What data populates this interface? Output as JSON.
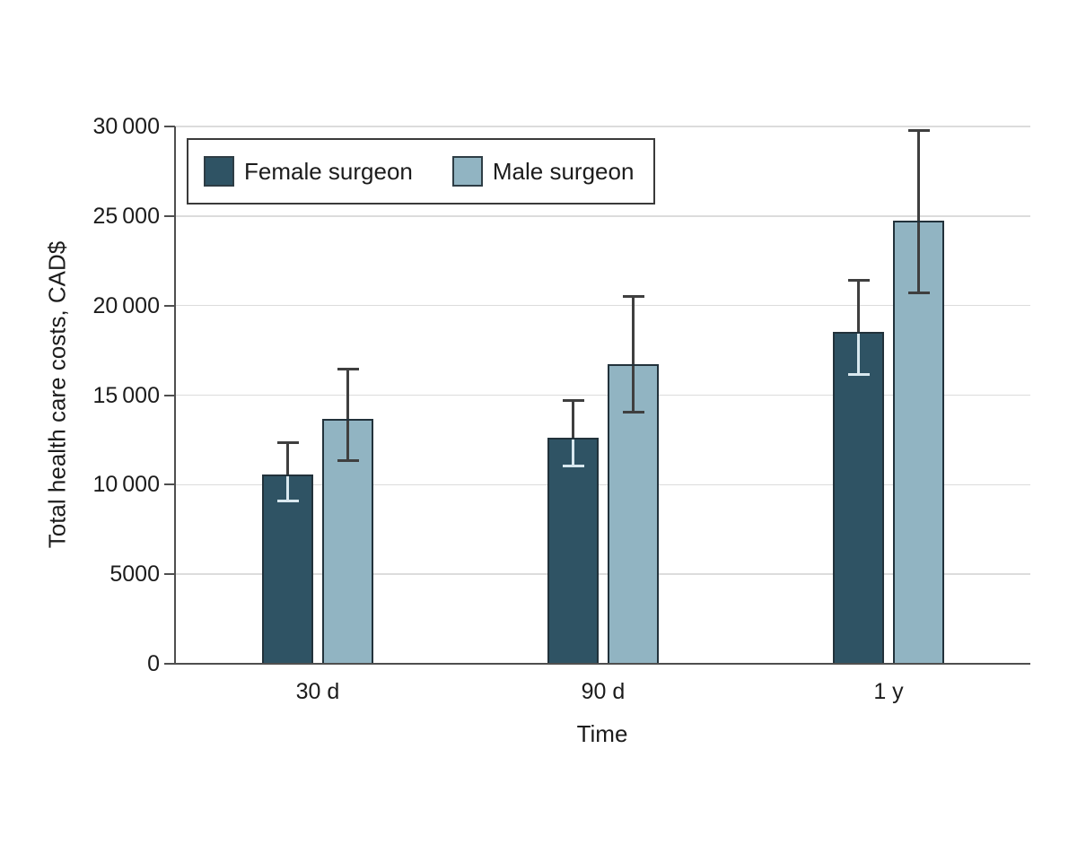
{
  "colors": {
    "background": "#ffffff",
    "gridline": "#dcdcdc",
    "axis": "#4f4f4f",
    "text": "#1c1c1c",
    "bar_border": "#22323b",
    "error_bar": "#3f3f3f",
    "legend_border": "#3a3a3a"
  },
  "chart_data": {
    "type": "bar",
    "title": "",
    "xlabel": "Time",
    "ylabel": "Total health care costs, CAD$",
    "categories": [
      "30 d",
      "90 d",
      "1 y"
    ],
    "ylim": [
      0,
      30000
    ],
    "ytick_values": [
      0,
      5000,
      10000,
      15000,
      20000,
      25000,
      30000
    ],
    "ytick_labels": [
      "0",
      "5000",
      "10 000",
      "15 000",
      "20 000",
      "25 000",
      "30 000"
    ],
    "grid": "horizontal",
    "legend_position": "top-left-inside",
    "error_bars": "95% CI whiskers with caps",
    "series": [
      {
        "name": "Female surgeon",
        "color": "#2f5364",
        "error_inside_color": "#d9e8ef",
        "values": [
          10550,
          12600,
          18550
        ],
        "error_low": [
          9100,
          11050,
          16150
        ],
        "error_high": [
          12350,
          14700,
          21400
        ]
      },
      {
        "name": "Male surgeon",
        "color": "#91b4c2",
        "error_inside_color": "#3f3f3f",
        "values": [
          13650,
          16750,
          24750
        ],
        "error_low": [
          11350,
          14050,
          20700
        ],
        "error_high": [
          16450,
          20500,
          29750
        ]
      }
    ]
  }
}
